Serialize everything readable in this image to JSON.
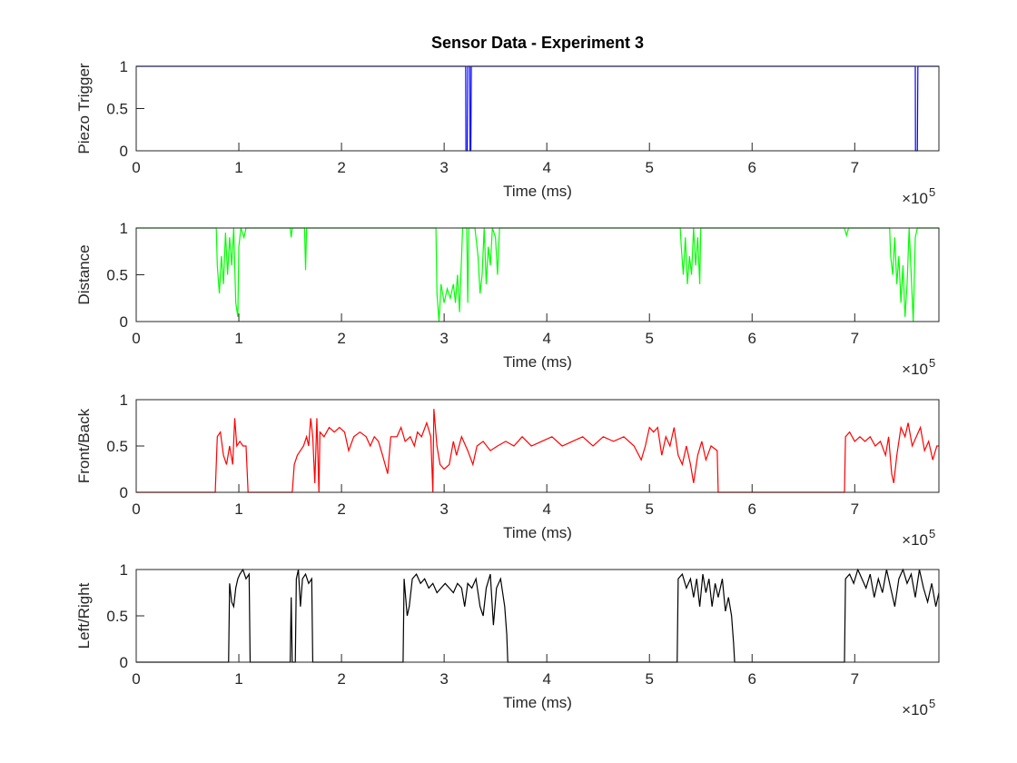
{
  "chart_data": [
    {
      "type": "line",
      "title": "Sensor Data - Experiment 3",
      "ylabel": "Piezo Trigger",
      "xlabel": "Time (ms)",
      "color": "#0000ff",
      "x_exponent": {
        "base": "×10",
        "power": "5"
      },
      "xlim": [
        0,
        782000
      ],
      "ylim": [
        0,
        1
      ],
      "xticks": [
        0,
        {
          "value": 100000,
          "label": "1"
        },
        {
          "value": 200000,
          "label": "2"
        },
        {
          "value": 300000,
          "label": "3"
        },
        {
          "value": 400000,
          "label": "4"
        },
        {
          "value": 500000,
          "label": "5"
        },
        {
          "value": 600000,
          "label": "6"
        },
        {
          "value": 700000,
          "label": "7"
        }
      ],
      "yticks": [
        0,
        0.5,
        1
      ],
      "x": [
        0,
        321000,
        321200,
        322500,
        323000,
        325000,
        325200,
        326000,
        326500,
        759000,
        759200,
        761000,
        761500,
        782000
      ],
      "values": [
        1,
        1,
        0,
        0,
        1,
        1,
        0,
        0,
        1,
        1,
        0,
        0,
        1,
        1
      ]
    },
    {
      "type": "line",
      "ylabel": "Distance",
      "xlabel": "Time (ms)",
      "color": "#00ff00",
      "x_exponent": {
        "base": "×10",
        "power": "5"
      },
      "xlim": [
        0,
        782000
      ],
      "ylim": [
        0,
        1
      ],
      "xticks": [
        0,
        {
          "value": 100000,
          "label": "1"
        },
        {
          "value": 200000,
          "label": "2"
        },
        {
          "value": 300000,
          "label": "3"
        },
        {
          "value": 400000,
          "label": "4"
        },
        {
          "value": 500000,
          "label": "5"
        },
        {
          "value": 600000,
          "label": "6"
        },
        {
          "value": 700000,
          "label": "7"
        }
      ],
      "yticks": [
        0,
        0.5,
        1
      ],
      "x": [
        0,
        78000,
        79000,
        81000,
        83000,
        85000,
        87000,
        89000,
        91000,
        93000,
        95000,
        97000,
        99000,
        100000,
        102000,
        105000,
        107000,
        150000,
        151000,
        152000,
        164000,
        165000,
        166000,
        292000,
        293000,
        295000,
        297000,
        300000,
        303000,
        306000,
        309000,
        311000,
        313000,
        315000,
        317000,
        318000,
        322000,
        323000,
        324000,
        330000,
        333000,
        335000,
        337000,
        339000,
        341000,
        343000,
        345000,
        347000,
        350000,
        352000,
        354000,
        530000,
        531000,
        533000,
        535000,
        537000,
        539000,
        541000,
        543000,
        545000,
        547000,
        549000,
        550000,
        690000,
        692000,
        694000,
        734000,
        735000,
        737000,
        739000,
        741000,
        743000,
        745000,
        747000,
        749000,
        751000,
        753000,
        755000,
        757000,
        759000,
        761000,
        782000
      ],
      "values": [
        1,
        1,
        0.6,
        0.3,
        0.7,
        0.4,
        0.95,
        0.5,
        0.9,
        0.6,
        1,
        0.2,
        0.05,
        0.8,
        1,
        0.9,
        1,
        1,
        0.9,
        1,
        1,
        0.55,
        1,
        1,
        0.3,
        0,
        0.4,
        0.2,
        0.35,
        0.25,
        0.4,
        0.2,
        0.5,
        0.1,
        0.7,
        1,
        1,
        0.2,
        1,
        1,
        0.7,
        0.3,
        0.5,
        1,
        0.4,
        0.8,
        0.6,
        1,
        0.9,
        0.5,
        1,
        1,
        0.8,
        0.5,
        0.9,
        0.4,
        0.7,
        0.5,
        1,
        0.6,
        0.9,
        0.4,
        1,
        1,
        0.92,
        1,
        1,
        0.7,
        0.5,
        0.9,
        0.4,
        0.7,
        0.2,
        0.6,
        0.05,
        0.4,
        1,
        0.5,
        0,
        0.9,
        1,
        1
      ]
    },
    {
      "type": "line",
      "ylabel": "Front/Back",
      "xlabel": "Time (ms)",
      "color": "#ff0000",
      "x_exponent": {
        "base": "×10",
        "power": "5"
      },
      "xlim": [
        0,
        782000
      ],
      "ylim": [
        0,
        1
      ],
      "xticks": [
        0,
        {
          "value": 100000,
          "label": "1"
        },
        {
          "value": 200000,
          "label": "2"
        },
        {
          "value": 300000,
          "label": "3"
        },
        {
          "value": 400000,
          "label": "4"
        },
        {
          "value": 500000,
          "label": "5"
        },
        {
          "value": 600000,
          "label": "6"
        },
        {
          "value": 700000,
          "label": "7"
        }
      ],
      "yticks": [
        0,
        0.5,
        1
      ],
      "x": [
        0,
        77000,
        79000,
        82000,
        85000,
        88000,
        91000,
        94000,
        96000,
        98000,
        101000,
        104000,
        107000,
        109000,
        152000,
        154000,
        157000,
        160000,
        163000,
        166000,
        168000,
        170000,
        172000,
        174000,
        176000,
        178000,
        179000,
        183000,
        188000,
        193000,
        198000,
        203000,
        207000,
        212000,
        218000,
        224000,
        228000,
        232000,
        236000,
        240000,
        245000,
        248000,
        254000,
        258000,
        262000,
        267000,
        271000,
        274000,
        278000,
        283000,
        287000,
        289000,
        290000,
        293000,
        296000,
        300000,
        305000,
        309000,
        312000,
        317000,
        323000,
        328000,
        332000,
        338000,
        345000,
        352000,
        360000,
        368000,
        376000,
        385000,
        395000,
        405000,
        415000,
        425000,
        435000,
        445000,
        455000,
        465000,
        475000,
        485000,
        492000,
        496000,
        500000,
        504000,
        508000,
        512000,
        516000,
        520000,
        524000,
        528000,
        532000,
        536000,
        540000,
        543000,
        547000,
        551000,
        555000,
        560000,
        566000,
        567000,
        690000,
        691000,
        695000,
        700000,
        705000,
        710000,
        715000,
        720000,
        725000,
        730000,
        733000,
        736000,
        738000,
        741000,
        745000,
        749000,
        752000,
        756000,
        760000,
        764000,
        768000,
        772000,
        776000,
        780000,
        782000
      ],
      "values": [
        0,
        0,
        0.6,
        0.65,
        0.4,
        0.3,
        0.5,
        0.3,
        0.8,
        0.5,
        0.55,
        0.5,
        0.5,
        0,
        0,
        0.3,
        0.4,
        0.45,
        0.5,
        0.6,
        0.5,
        0.8,
        0.6,
        0.1,
        0.8,
        0,
        0.65,
        0.6,
        0.7,
        0.65,
        0.7,
        0.65,
        0.45,
        0.6,
        0.65,
        0.6,
        0.5,
        0.6,
        0.55,
        0.4,
        0.2,
        0.6,
        0.6,
        0.7,
        0.55,
        0.6,
        0.5,
        0.65,
        0.6,
        0.75,
        0.6,
        0,
        0.9,
        0.5,
        0.3,
        0.25,
        0.3,
        0.55,
        0.4,
        0.6,
        0.45,
        0.3,
        0.5,
        0.55,
        0.45,
        0.5,
        0.55,
        0.5,
        0.6,
        0.5,
        0.55,
        0.6,
        0.5,
        0.55,
        0.6,
        0.5,
        0.6,
        0.55,
        0.6,
        0.5,
        0.35,
        0.5,
        0.7,
        0.65,
        0.7,
        0.4,
        0.6,
        0.5,
        0.7,
        0.4,
        0.3,
        0.5,
        0.3,
        0.1,
        0.4,
        0.55,
        0.35,
        0.5,
        0.45,
        0,
        0,
        0.6,
        0.65,
        0.55,
        0.6,
        0.55,
        0.6,
        0.5,
        0.55,
        0.4,
        0.6,
        0.2,
        0.1,
        0.4,
        0.7,
        0.6,
        0.75,
        0.5,
        0.6,
        0.7,
        0.45,
        0.55,
        0.35,
        0.5,
        0.5
      ]
    },
    {
      "type": "line",
      "ylabel": "Left/Right",
      "xlabel": "Time (ms)",
      "color": "#000000",
      "x_exponent": {
        "base": "×10",
        "power": "5"
      },
      "xlim": [
        0,
        782000
      ],
      "ylim": [
        0,
        1
      ],
      "xticks": [
        0,
        {
          "value": 100000,
          "label": "1"
        },
        {
          "value": 200000,
          "label": "2"
        },
        {
          "value": 300000,
          "label": "3"
        },
        {
          "value": 400000,
          "label": "4"
        },
        {
          "value": 500000,
          "label": "5"
        },
        {
          "value": 600000,
          "label": "6"
        },
        {
          "value": 700000,
          "label": "7"
        }
      ],
      "yticks": [
        0,
        0.5,
        1
      ],
      "x": [
        0,
        90000,
        91000,
        93000,
        95000,
        97000,
        99000,
        101000,
        104000,
        107000,
        110000,
        111000,
        150000,
        151000,
        152000,
        155000,
        156000,
        158000,
        160000,
        162000,
        165000,
        168000,
        171000,
        172000,
        260000,
        261000,
        264000,
        266000,
        269000,
        273000,
        277000,
        281000,
        285000,
        289000,
        293000,
        297000,
        301000,
        305000,
        309000,
        313000,
        317000,
        320000,
        323000,
        327000,
        331000,
        335000,
        338000,
        341000,
        345000,
        348000,
        351000,
        355000,
        359000,
        361000,
        362000,
        527000,
        528000,
        532000,
        536000,
        540000,
        543000,
        546000,
        549000,
        552000,
        555000,
        558000,
        561000,
        564000,
        567000,
        571000,
        574000,
        577000,
        580000,
        582000,
        583000,
        690000,
        691000,
        695000,
        699000,
        703000,
        707000,
        711000,
        715000,
        719000,
        723000,
        727000,
        731000,
        735000,
        739000,
        743000,
        747000,
        751000,
        755000,
        759000,
        763000,
        767000,
        771000,
        775000,
        779000,
        782000
      ],
      "values": [
        0,
        0,
        0.85,
        0.65,
        0.6,
        0.8,
        0.9,
        0.95,
        1,
        0.9,
        0.95,
        0,
        0,
        0.7,
        0,
        0,
        0.9,
        1,
        0.6,
        0.9,
        0.95,
        0.85,
        0.9,
        0,
        0,
        0.9,
        0.5,
        0.6,
        0.9,
        0.95,
        0.85,
        0.9,
        0.8,
        0.85,
        0.75,
        0.8,
        0.85,
        0.8,
        0.75,
        0.85,
        0.8,
        0.6,
        0.85,
        0.8,
        0.9,
        0.6,
        0.5,
        0.8,
        0.95,
        0.4,
        0.8,
        0.9,
        0.6,
        0.3,
        0,
        0,
        0.9,
        0.95,
        0.8,
        0.9,
        0.7,
        0.9,
        0.6,
        0.95,
        0.75,
        0.9,
        0.6,
        0.85,
        0.7,
        0.9,
        0.55,
        0.7,
        0.5,
        0.2,
        0,
        0,
        0.9,
        0.95,
        0.85,
        1,
        0.9,
        0.8,
        0.95,
        0.7,
        0.9,
        0.75,
        1,
        0.8,
        0.6,
        0.9,
        1,
        0.85,
        0.95,
        0.7,
        1,
        0.8,
        0.65,
        0.85,
        0.6,
        0.75
      ]
    }
  ]
}
